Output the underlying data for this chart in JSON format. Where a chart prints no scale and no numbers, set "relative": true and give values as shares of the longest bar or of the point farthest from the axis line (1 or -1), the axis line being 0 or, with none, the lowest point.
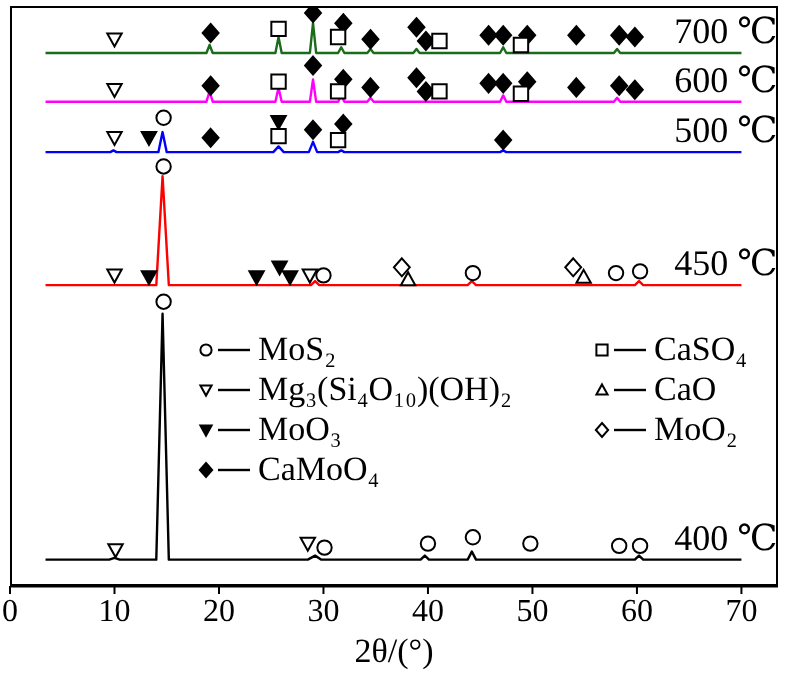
{
  "chart_data": {
    "type": "line",
    "relative": true,
    "xlabel": "2θ/(°)",
    "xlim": [
      0,
      73.5
    ],
    "xticks": [
      0,
      10,
      20,
      30,
      40,
      50,
      60,
      70
    ],
    "grid": false,
    "legend": "center",
    "line_style": "solid",
    "series": [
      {
        "name": "400 ℃",
        "color": "#000000",
        "x": [
          3.4,
          9.5,
          10,
          10.5,
          14.0,
          14.6,
          15.2,
          28.5,
          29.2,
          29.8,
          39.3,
          39.7,
          40.1,
          43.8,
          44.2,
          44.6,
          59.8,
          60.2,
          60.6,
          70
        ],
        "values": [
          0.046,
          0.046,
          0.049,
          0.046,
          0.046,
          0.475,
          0.046,
          0.046,
          0.053,
          0.046,
          0.046,
          0.053,
          0.046,
          0.046,
          0.06,
          0.046,
          0.046,
          0.053,
          0.046,
          0.046
        ]
      },
      {
        "name": "450 ℃",
        "color": "#ff0000",
        "x": [
          3.4,
          14.0,
          14.6,
          15.2,
          28.8,
          29.2,
          29.6,
          43.8,
          44.2,
          44.6,
          59.8,
          60.2,
          60.6,
          70
        ],
        "values": [
          0.525,
          0.525,
          0.715,
          0.525,
          0.525,
          0.532,
          0.525,
          0.525,
          0.532,
          0.525,
          0.525,
          0.532,
          0.525,
          0.525
        ]
      },
      {
        "name": "500 ℃",
        "color": "#0000ff",
        "x": [
          3.4,
          9.6,
          9.9,
          10.2,
          14.2,
          14.6,
          15.0,
          25.2,
          25.7,
          26.2,
          28.6,
          29.0,
          29.4,
          31.4,
          31.7,
          32.0,
          46.9,
          47.2,
          47.5,
          70
        ],
        "values": [
          0.757,
          0.757,
          0.76,
          0.757,
          0.757,
          0.792,
          0.757,
          0.757,
          0.767,
          0.757,
          0.757,
          0.775,
          0.757,
          0.757,
          0.76,
          0.757,
          0.757,
          0.76,
          0.757,
          0.757
        ]
      },
      {
        "name": "600 ℃",
        "color": "#ff00ff",
        "x": [
          3.4,
          18.8,
          19.1,
          19.4,
          25.4,
          25.7,
          26.0,
          28.7,
          29.0,
          29.3,
          31.4,
          31.7,
          32.0,
          34.2,
          34.5,
          34.8,
          46.9,
          47.2,
          47.5,
          57.8,
          58.1,
          58.4,
          70
        ],
        "values": [
          0.845,
          0.845,
          0.863,
          0.845,
          0.845,
          0.87,
          0.845,
          0.845,
          0.884,
          0.845,
          0.845,
          0.856,
          0.845,
          0.845,
          0.852,
          0.845,
          0.845,
          0.856,
          0.845,
          0.845,
          0.852,
          0.845,
          0.845
        ]
      },
      {
        "name": "700 ℃",
        "color": "#1a6b1a",
        "x": [
          3.4,
          18.8,
          19.1,
          19.4,
          25.4,
          25.7,
          26.0,
          28.7,
          29.0,
          29.3,
          31.4,
          31.7,
          32.0,
          34.2,
          34.5,
          34.8,
          38.6,
          38.9,
          39.2,
          46.9,
          47.2,
          47.5,
          57.8,
          58.1,
          58.4,
          70
        ],
        "values": [
          0.93,
          0.93,
          0.944,
          0.93,
          0.93,
          0.958,
          0.93,
          0.93,
          0.982,
          0.93,
          0.93,
          0.94,
          0.93,
          0.93,
          0.937,
          0.93,
          0.93,
          0.937,
          0.93,
          0.93,
          0.94,
          0.93,
          0.93,
          0.937,
          0.93,
          0.93
        ]
      },
      {
        "name": "MoS₂",
        "type": "scatter",
        "marker": "circle-open",
        "color": "#000000",
        "x": [
          30.1,
          40.0,
          44.3,
          49.8,
          58.3,
          60.3,
          14.7,
          14.7,
          30.0,
          44.3,
          58.0,
          60.3,
          14.7
        ],
        "values": [
          0.067,
          0.074,
          0.085,
          0.074,
          0.07,
          0.07,
          0.496,
          0.732,
          0.542,
          0.546,
          0.546,
          0.549,
          0.817
        ]
      },
      {
        "name": "Mg₃(Si₄O₁₀)(OH)₂",
        "type": "scatter",
        "marker": "triangle-down-open",
        "color": "#000000",
        "x": [
          10.1,
          28.5,
          10.0,
          28.7,
          10.0,
          10.0,
          10.0
        ],
        "values": [
          0.063,
          0.074,
          0.542,
          0.542,
          0.782,
          0.866,
          0.954
        ]
      },
      {
        "name": "MoO₃",
        "type": "scatter",
        "marker": "triangle-down",
        "color": "#000000",
        "x": [
          13.3,
          23.6,
          25.8,
          26.8,
          13.3,
          25.7
        ],
        "values": [
          0.539,
          0.539,
          0.556,
          0.539,
          0.782,
          0.81
        ]
      },
      {
        "name": "CaMoO₄",
        "type": "scatter",
        "marker": "diamond",
        "color": "#000000",
        "x": [
          19.2,
          29.0,
          31.9,
          47.2,
          19.2,
          29.0,
          31.9,
          34.5,
          38.9,
          39.8,
          45.8,
          47.2,
          49.5,
          54.2,
          58.3,
          59.8,
          19.2,
          29.0,
          31.9,
          34.5,
          38.9,
          39.8,
          45.8,
          47.2,
          49.5,
          54.2,
          58.3,
          59.8
        ],
        "values": [
          0.782,
          0.796,
          0.806,
          0.778,
          0.873,
          0.908,
          0.884,
          0.87,
          0.887,
          0.863,
          0.877,
          0.877,
          0.88,
          0.87,
          0.873,
          0.866,
          0.965,
          1.0,
          0.982,
          0.954,
          0.975,
          0.951,
          0.961,
          0.961,
          0.961,
          0.961,
          0.961,
          0.958
        ]
      },
      {
        "name": "CaSO₄",
        "type": "scatter",
        "marker": "square-open",
        "color": "#000000",
        "x": [
          25.7,
          31.4,
          25.7,
          31.4,
          41.1,
          48.9,
          25.7,
          31.4,
          41.1,
          48.9
        ],
        "values": [
          0.785,
          0.778,
          0.88,
          0.863,
          0.863,
          0.859,
          0.972,
          0.958,
          0.951,
          0.944
        ]
      },
      {
        "name": "CaO",
        "type": "scatter",
        "marker": "triangle-open",
        "color": "#000000",
        "x": [
          38.1,
          54.9
        ],
        "values": [
          0.535,
          0.539
        ]
      },
      {
        "name": "MoO₂",
        "type": "scatter",
        "marker": "diamond-open",
        "color": "#000000",
        "x": [
          37.5,
          53.9
        ],
        "values": [
          0.556,
          0.556
        ]
      }
    ]
  }
}
